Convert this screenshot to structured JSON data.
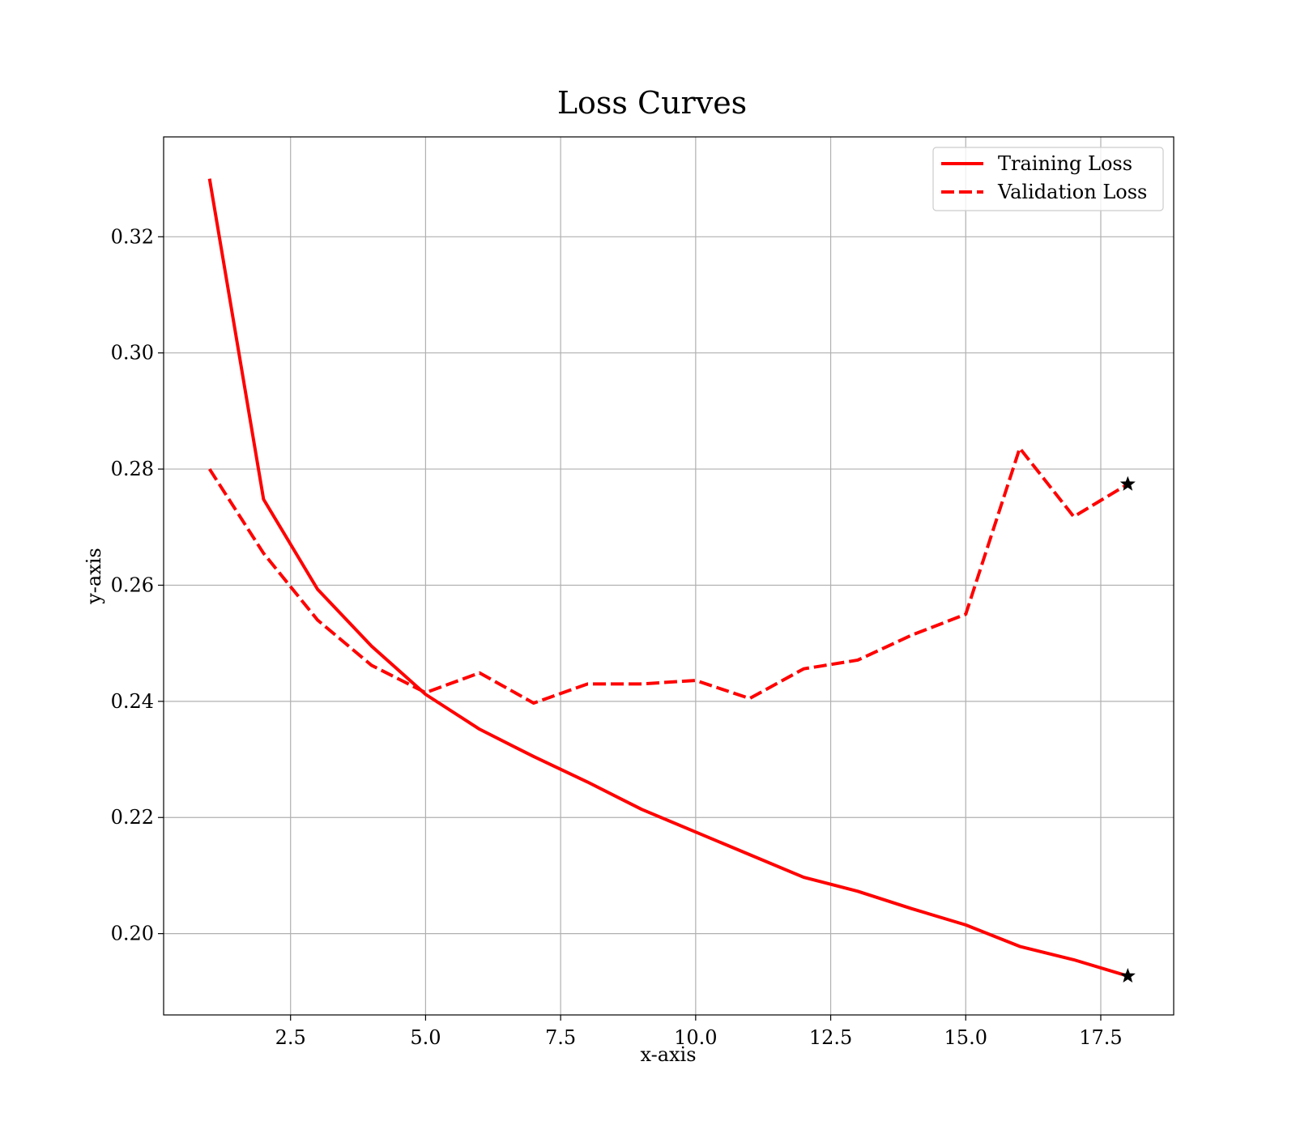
{
  "chart_data": {
    "type": "line",
    "title": "Loss Curves",
    "xlabel": "x-axis",
    "ylabel": "y-axis",
    "x": [
      1,
      2,
      3,
      4,
      5,
      6,
      7,
      8,
      9,
      10,
      11,
      12,
      13,
      14,
      15,
      16,
      17,
      18
    ],
    "xlim": [
      0.15,
      18.85
    ],
    "ylim": [
      0.186,
      0.3372
    ],
    "xticks": [
      2.5,
      5.0,
      7.5,
      10.0,
      12.5,
      15.0,
      17.5
    ],
    "xtick_labels": [
      "2.5",
      "5.0",
      "7.5",
      "10.0",
      "12.5",
      "15.0",
      "17.5"
    ],
    "yticks": [
      0.2,
      0.22,
      0.24,
      0.26,
      0.28,
      0.3,
      0.32
    ],
    "ytick_labels": [
      "0.20",
      "0.22",
      "0.24",
      "0.26",
      "0.28",
      "0.30",
      "0.32"
    ],
    "grid": true,
    "legend_position": "top-right",
    "series": [
      {
        "name": "Training Loss",
        "color": "#ff0000",
        "style": "solid",
        "values": [
          0.33,
          0.2748,
          0.2593,
          0.2495,
          0.2412,
          0.2352,
          0.2305,
          0.2261,
          0.2214,
          0.2175,
          0.2136,
          0.2097,
          0.2073,
          0.2043,
          0.2015,
          0.1978,
          0.1955,
          0.1927
        ],
        "end_marker": "star"
      },
      {
        "name": "Validation Loss",
        "color": "#ff0000",
        "style": "dashed",
        "values": [
          0.28,
          0.2655,
          0.254,
          0.2462,
          0.2415,
          0.2449,
          0.2397,
          0.243,
          0.243,
          0.2436,
          0.2405,
          0.2456,
          0.2471,
          0.2514,
          0.255,
          0.2836,
          0.2718,
          0.2774
        ],
        "end_marker": "star"
      }
    ]
  }
}
